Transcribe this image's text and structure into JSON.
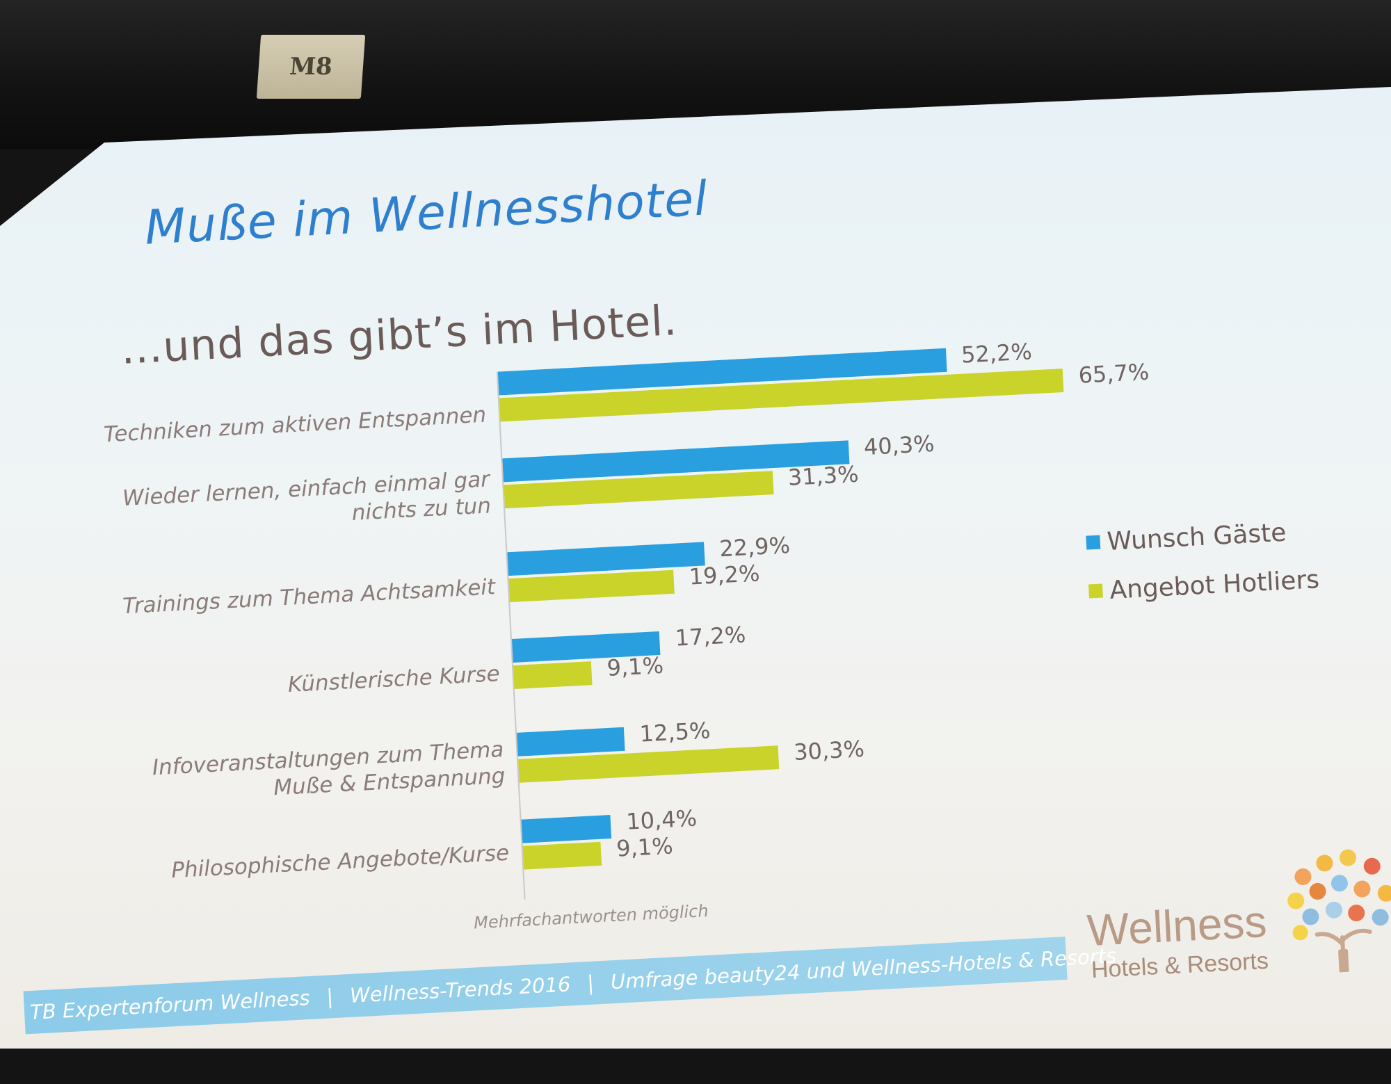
{
  "slide": {
    "title": "Muße im Wellnesshotel",
    "subtitle": "…und das gibt’s im Hotel.",
    "note": "Mehrfachantworten möglich",
    "footer": [
      "TB Expertenforum Wellness",
      "Wellness-Trends 2016",
      "Umfrage beauty24 und Wellness-Hotels & Resorts"
    ],
    "footer_sep": "|",
    "room_sign": "M8",
    "logo_word": "Wellness",
    "logo_sub": "Hotels & Resorts"
  },
  "colors": {
    "wunsch": "#2a9fe0",
    "angebot": "#c9d32a",
    "title": "#2f7fcf",
    "subtitle": "#6b5b58"
  },
  "chart_data": {
    "type": "bar",
    "orientation": "horizontal",
    "title": "Muße im Wellnesshotel",
    "subtitle": "…und das gibt’s im Hotel.",
    "categories": [
      "Techniken zum aktiven Entspannen",
      "Wieder lernen, einfach einmal gar nichts zu tun",
      "Trainings zum Thema Achtsamkeit",
      "Künstlerische Kurse",
      "Infoveranstaltungen zum Thema Muße & Entspannung",
      "Philosophische Angebote/Kurse"
    ],
    "series": [
      {
        "name": "Wunsch Gäste",
        "values": [
          52.2,
          40.3,
          22.9,
          17.2,
          12.5,
          10.4
        ],
        "labels": [
          "52,2%",
          "40,3%",
          "22,9%",
          "17,2%",
          "12,5%",
          "10,4%"
        ]
      },
      {
        "name": "Angebot Hotliers",
        "values": [
          65.7,
          31.3,
          19.2,
          9.1,
          30.3,
          9.1
        ],
        "labels": [
          "65,7%",
          "31,3%",
          "19,2%",
          "9,1%",
          "30,3%",
          "9,1%"
        ]
      }
    ],
    "xlim": [
      0,
      70
    ],
    "legend_position": "right",
    "grid": false
  }
}
